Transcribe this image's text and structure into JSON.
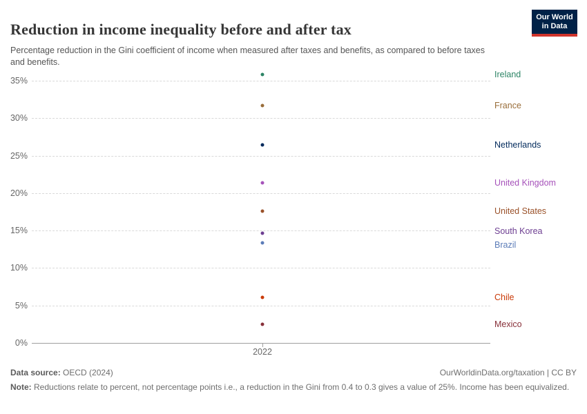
{
  "header": {
    "logo": {
      "line1": "Our World",
      "line2": "in Data"
    }
  },
  "chart_data": {
    "type": "scatter",
    "title": "Reduction in income inequality before and after tax",
    "subtitle": "Percentage reduction in the Gini coefficient of income when measured after taxes and benefits, as compared to before taxes and benefits.",
    "x": [
      2022
    ],
    "x_tick_label": "2022",
    "yticks": [
      0,
      5,
      10,
      15,
      20,
      25,
      30,
      35
    ],
    "ytick_suffix": "%",
    "ylim": [
      0,
      36.6
    ],
    "grid": "horizontal-dashed",
    "legend_position": "right-entity-labels",
    "series": [
      {
        "name": "Ireland",
        "value": 35.8,
        "color": "#2C8465"
      },
      {
        "name": "France",
        "value": 31.7,
        "color": "#996D39"
      },
      {
        "name": "Netherlands",
        "value": 26.4,
        "color": "#00295B"
      },
      {
        "name": "United Kingdom",
        "value": 21.4,
        "color": "#A652BA"
      },
      {
        "name": "United States",
        "value": 17.6,
        "color": "#9A5129"
      },
      {
        "name": "South Korea",
        "value": 14.6,
        "color": "#6D3E91",
        "label_dy": -3
      },
      {
        "name": "Brazil",
        "value": 13.4,
        "color": "#5B7CB8",
        "label_dy": 3
      },
      {
        "name": "Chile",
        "value": 6.1,
        "color": "#C93A08"
      },
      {
        "name": "Mexico",
        "value": 2.5,
        "color": "#883039"
      }
    ]
  },
  "footer": {
    "source_label": "Data source:",
    "source_value": "OECD (2024)",
    "credit": "OurWorldinData.org/taxation | CC BY",
    "note_label": "Note:",
    "note_value": "Reductions relate to percent, not percentage points i.e., a reduction in the Gini from 0.4 to 0.3 gives a value of 25%. Income has been equivalized."
  }
}
